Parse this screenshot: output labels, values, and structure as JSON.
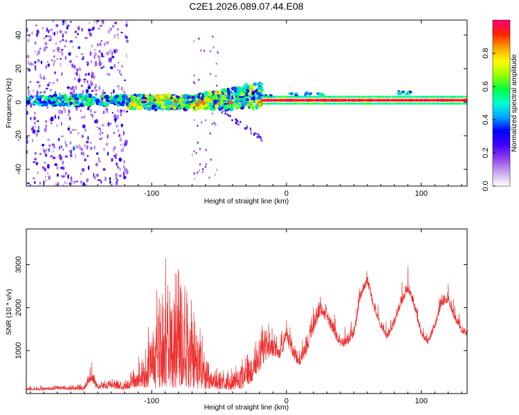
{
  "title": "C2E1.2026.089.07.44.E08",
  "chart_data": [
    {
      "type": "heatmap",
      "name": "spectrogram",
      "xlabel": "Height of straight line (km)",
      "ylabel": "Frequency (Hz)",
      "xlim": [
        -193,
        134
      ],
      "ylim": [
        -50,
        49
      ],
      "xticks": [
        -100,
        0,
        100
      ],
      "yticks": [
        -40,
        -20,
        0,
        20,
        40
      ],
      "colorbar": {
        "label": "Normalized spectral amplitude",
        "range": [
          0,
          1
        ],
        "ticks": [
          "0.0",
          "0.2",
          "0.4",
          "0.6",
          "0.8"
        ],
        "colors": [
          "#ffffff",
          "#c9a7ec",
          "#8d3ff0",
          "#3d00ff",
          "#0000ff",
          "#00a8ff",
          "#00ffd0",
          "#00ff40",
          "#9aff00",
          "#ffff00",
          "#ffa000",
          "#ff2000",
          "#ff007a"
        ]
      },
      "regions": [
        {
          "x_range": [
            -193,
            -118
          ],
          "description": "scattered speckle noise across all frequencies",
          "peak_level": 0.5
        },
        {
          "x_range": [
            -118,
            -18
          ],
          "description": "broad signal band near 0 Hz widening to +10 Hz",
          "peak_level": 0.9
        },
        {
          "x_range": [
            -18,
            134
          ],
          "description": "narrow strong band near 1 Hz",
          "peak_level": 1.0
        }
      ]
    },
    {
      "type": "line",
      "name": "snr",
      "xlabel": "Height of straight line (km)",
      "ylabel": "SNR (10 * v/v)",
      "xlim": [
        -193,
        134
      ],
      "ylim": [
        0,
        3830
      ],
      "xticks": [
        -100,
        0,
        100
      ],
      "yticks": [
        1000,
        2000,
        3000
      ],
      "color": "#ee3030",
      "envelope": {
        "x": [
          -193,
          -170,
          -150,
          -145,
          -140,
          -130,
          -120,
          -112,
          -105,
          -100,
          -96,
          -92,
          -88,
          -85,
          -80,
          -75,
          -70,
          -65,
          -60,
          -55,
          -50,
          -45,
          -40,
          -35,
          -30,
          -25,
          -20,
          -15,
          -10,
          -5,
          0,
          5,
          10,
          15,
          20,
          25,
          30,
          35,
          40,
          45,
          50,
          55,
          60,
          65,
          70,
          75,
          80,
          85,
          90,
          95,
          100,
          105,
          110,
          115,
          120,
          125,
          130,
          134
        ],
        "y": [
          150,
          170,
          200,
          700,
          250,
          300,
          280,
          600,
          1100,
          1800,
          2200,
          2800,
          3300,
          2500,
          2600,
          3100,
          2000,
          1500,
          900,
          700,
          600,
          500,
          550,
          650,
          800,
          1000,
          1300,
          1600,
          1400,
          1200,
          1700,
          1200,
          1000,
          1400,
          1900,
          2300,
          2100,
          1700,
          1300,
          1400,
          1600,
          2500,
          2800,
          2200,
          1700,
          1400,
          1800,
          2300,
          2700,
          2200,
          1500,
          1300,
          1700,
          2300,
          2400,
          1900,
          1600,
          1500
        ]
      },
      "noise_amplitude": [
        0.5,
        0.5,
        0.6,
        0.6,
        0.6,
        0.6,
        0.7,
        0.8,
        0.9,
        0.95,
        0.95,
        0.95,
        0.95,
        0.95,
        0.95,
        0.95,
        0.95,
        0.95,
        0.9,
        0.85,
        0.85,
        0.85,
        0.85,
        0.85,
        0.8,
        0.7,
        0.6,
        0.5,
        0.4,
        0.35,
        0.3,
        0.35,
        0.35,
        0.35,
        0.25,
        0.2,
        0.2,
        0.2,
        0.2,
        0.2,
        0.18,
        0.12,
        0.1,
        0.12,
        0.12,
        0.12,
        0.12,
        0.12,
        0.12,
        0.12,
        0.12,
        0.12,
        0.12,
        0.12,
        0.12,
        0.12,
        0.12,
        0.12
      ]
    }
  ]
}
